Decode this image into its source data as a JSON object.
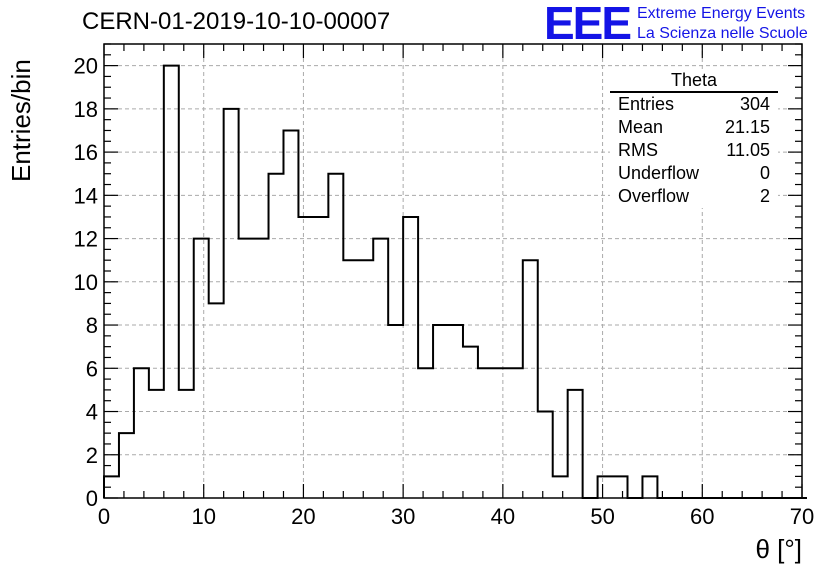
{
  "header": {
    "title": "CERN-01-2019-10-10-00007",
    "logo": "EEE",
    "logo_line1": "Extreme Energy Events",
    "logo_line2": "La Scienza nelle Scuole"
  },
  "chart_data": {
    "type": "bar",
    "histogram": true,
    "xlabel": "θ [°]",
    "ylabel": "Entries/bin",
    "xlim": [
      0,
      70
    ],
    "ylim": [
      0,
      21
    ],
    "xticks": [
      0,
      10,
      20,
      30,
      40,
      50,
      60,
      70
    ],
    "yticks": [
      0,
      2,
      4,
      6,
      8,
      10,
      12,
      14,
      16,
      18,
      20
    ],
    "grid": true,
    "bin_width": 1.5,
    "bin_edges_start": 0,
    "values": [
      1,
      3,
      6,
      5,
      20,
      5,
      12,
      9,
      18,
      12,
      12,
      15,
      17,
      13,
      13,
      15,
      11,
      11,
      12,
      8,
      13,
      6,
      8,
      8,
      7,
      6,
      6,
      6,
      11,
      4,
      1,
      5,
      0,
      1,
      1,
      0,
      1,
      0,
      0,
      0,
      0,
      0,
      0,
      0,
      0,
      0,
      0
    ],
    "stats": {
      "title": "Theta",
      "rows": [
        {
          "label": "Entries",
          "value": "304"
        },
        {
          "label": "Mean",
          "value": "21.15"
        },
        {
          "label": "RMS",
          "value": "11.05"
        },
        {
          "label": "Underflow",
          "value": "0"
        },
        {
          "label": "Overflow",
          "value": "2"
        }
      ]
    }
  }
}
